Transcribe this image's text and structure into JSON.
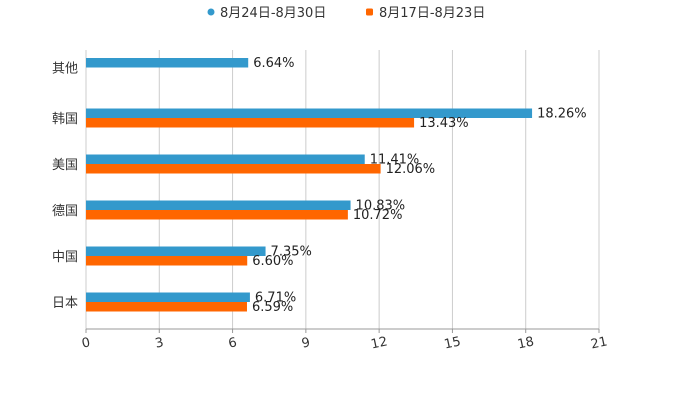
{
  "chart_data": {
    "type": "bar",
    "orientation": "horizontal",
    "categories": [
      "其他",
      "韩国",
      "美国",
      "德国",
      "中国",
      "日本"
    ],
    "series": [
      {
        "name": "8月24日-8月30日",
        "color": "#3399CC",
        "values": [
          6.64,
          18.26,
          11.41,
          10.83,
          7.35,
          6.71
        ],
        "labels": [
          "6.64%",
          "18.26%",
          "11.41%",
          "10.83%",
          "7.35%",
          "6.71%"
        ]
      },
      {
        "name": "8月17日-8月23日",
        "color": "#FF6600",
        "values": [
          null,
          13.43,
          12.06,
          10.72,
          6.6,
          6.59
        ],
        "labels": [
          "",
          "13.43%",
          "12.06%",
          "10.72%",
          "6.60%",
          "6.59%"
        ]
      }
    ],
    "x_ticks": [
      "0",
      "3",
      "6",
      "9",
      "12",
      "15",
      "18",
      "21"
    ],
    "xlim": [
      0,
      21
    ],
    "legend_position": "top-center",
    "grid": true
  }
}
